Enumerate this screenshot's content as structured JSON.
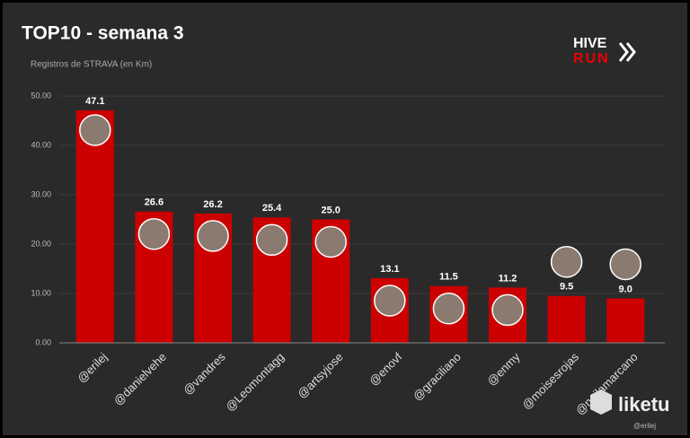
{
  "chart_data": {
    "type": "bar",
    "title": "TOP10 - semana 3",
    "subtitle": "Registros de STRAVA (en Km)",
    "categories": [
      "@erilej",
      "@danielvehe",
      "@vandres",
      "@Leomontagg",
      "@artsyjose",
      "@enovf",
      "@graciliano",
      "@enmy",
      "@moisesrojas",
      "@neilamarcano"
    ],
    "values": [
      47.1,
      26.6,
      26.2,
      25.4,
      25.0,
      13.1,
      11.5,
      11.2,
      9.5,
      9.0
    ],
    "value_labels": [
      "47.1",
      "26.6",
      "26.2",
      "25.4",
      "25.0",
      "13.1",
      "11.5",
      "11.2",
      "9.5",
      "9.0"
    ],
    "color": "#cc0000",
    "ylim": [
      0,
      50
    ],
    "yticks": [
      {
        "value": 0,
        "label": "0.00"
      },
      {
        "value": 10,
        "label": "10.00"
      },
      {
        "value": 20,
        "label": "20.00"
      },
      {
        "value": 30,
        "label": "30.00"
      },
      {
        "value": 40,
        "label": "40.00"
      },
      {
        "value": 50,
        "label": "50.00"
      }
    ],
    "grid": true
  },
  "logo": {
    "top": "HIVE",
    "bottom": "RUN"
  },
  "watermark": {
    "name": "liketu",
    "user": "@erilej"
  }
}
